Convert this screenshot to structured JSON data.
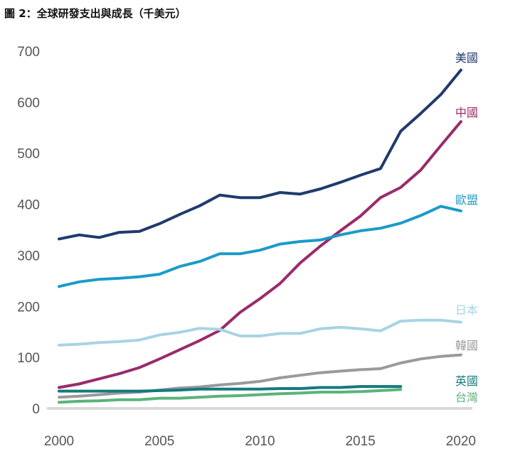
{
  "chart_data": {
    "type": "line",
    "title": "圖 2：全球研發支出與成長（千美元）",
    "xlabel": "",
    "ylabel": "",
    "xlim": [
      2000,
      2020
    ],
    "ylim": [
      0,
      700
    ],
    "xticks": [
      2000,
      2005,
      2010,
      2015,
      2020
    ],
    "yticks": [
      0,
      100,
      200,
      300,
      400,
      500,
      600,
      700
    ],
    "grid": false,
    "legend": "labels at line ends",
    "series": [
      {
        "name": "美國",
        "color": "#1f3b6e",
        "x": [
          2000,
          2001,
          2002,
          2003,
          2004,
          2005,
          2006,
          2007,
          2008,
          2009,
          2010,
          2011,
          2012,
          2013,
          2014,
          2015,
          2016,
          2017,
          2018,
          2019,
          2020
        ],
        "values": [
          332,
          340,
          335,
          345,
          347,
          362,
          380,
          397,
          418,
          413,
          413,
          423,
          420,
          430,
          443,
          457,
          470,
          543,
          578,
          615,
          663
        ]
      },
      {
        "name": "中國",
        "color": "#9b2a6b",
        "x": [
          2000,
          2001,
          2002,
          2003,
          2004,
          2005,
          2006,
          2007,
          2008,
          2009,
          2010,
          2011,
          2012,
          2013,
          2014,
          2015,
          2016,
          2017,
          2018,
          2019,
          2020
        ],
        "values": [
          41,
          48,
          58,
          68,
          80,
          97,
          115,
          133,
          153,
          188,
          215,
          245,
          285,
          318,
          348,
          377,
          413,
          433,
          467,
          515,
          562
        ]
      },
      {
        "name": "歐盟",
        "color": "#1a9bc9",
        "x": [
          2000,
          2001,
          2002,
          2003,
          2004,
          2005,
          2006,
          2007,
          2008,
          2009,
          2010,
          2011,
          2012,
          2013,
          2014,
          2015,
          2016,
          2017,
          2018,
          2019,
          2020
        ],
        "values": [
          239,
          248,
          253,
          255,
          258,
          263,
          278,
          288,
          303,
          303,
          310,
          322,
          327,
          330,
          340,
          348,
          353,
          363,
          378,
          396,
          387
        ]
      },
      {
        "name": "日本",
        "color": "#a8d4e4",
        "x": [
          2000,
          2001,
          2002,
          2003,
          2004,
          2005,
          2006,
          2007,
          2008,
          2009,
          2010,
          2011,
          2012,
          2013,
          2014,
          2015,
          2016,
          2017,
          2018,
          2019,
          2020
        ],
        "values": [
          124,
          126,
          129,
          131,
          134,
          144,
          149,
          157,
          155,
          142,
          142,
          147,
          147,
          156,
          159,
          156,
          152,
          171,
          173,
          173,
          169
        ]
      },
      {
        "name": "韓國",
        "color": "#9a9a9a",
        "x": [
          2000,
          2001,
          2002,
          2003,
          2004,
          2005,
          2006,
          2007,
          2008,
          2009,
          2010,
          2011,
          2012,
          2013,
          2014,
          2015,
          2016,
          2017,
          2018,
          2019,
          2020
        ],
        "values": [
          22,
          24,
          27,
          30,
          32,
          36,
          40,
          42,
          46,
          49,
          53,
          60,
          65,
          70,
          73,
          76,
          78,
          89,
          97,
          102,
          105
        ]
      },
      {
        "name": "英國",
        "color": "#137a7d",
        "x": [
          2000,
          2001,
          2002,
          2003,
          2004,
          2005,
          2006,
          2007,
          2008,
          2009,
          2010,
          2011,
          2012,
          2013,
          2014,
          2015,
          2016,
          2017
        ],
        "values": [
          34,
          34,
          34,
          34,
          34,
          35,
          36,
          38,
          38,
          38,
          38,
          39,
          39,
          41,
          41,
          43,
          43,
          43
        ]
      },
      {
        "name": "台灣",
        "color": "#5bb37a",
        "x": [
          2000,
          2001,
          2002,
          2003,
          2004,
          2005,
          2006,
          2007,
          2008,
          2009,
          2010,
          2011,
          2012,
          2013,
          2014,
          2015,
          2016,
          2017
        ],
        "values": [
          12,
          14,
          15,
          17,
          17,
          20,
          20,
          22,
          24,
          25,
          27,
          29,
          30,
          32,
          32,
          33,
          35,
          37
        ]
      }
    ]
  }
}
